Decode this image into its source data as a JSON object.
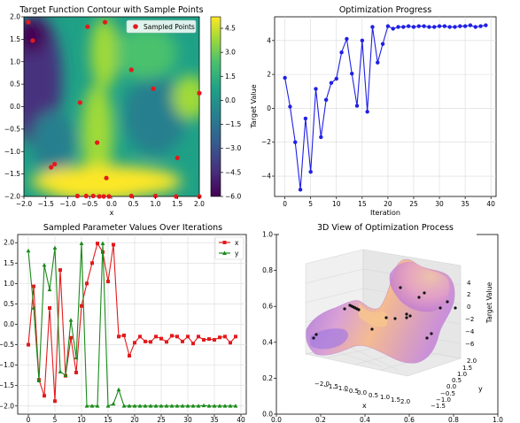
{
  "chart_data": [
    {
      "type": "contour",
      "title": "Target Function Contour with Sample Points",
      "xlabel": "x",
      "ylabel": "",
      "xlim": [
        -2.0,
        2.0
      ],
      "ylim": [
        -2.0,
        2.0
      ],
      "xticks": [
        "−2.0",
        "−1.5",
        "−1.0",
        "−0.5",
        "0.0",
        "0.5",
        "1.0",
        "1.5",
        "2.0"
      ],
      "yticks": [
        "−2.0",
        "−1.5",
        "−1.0",
        "−0.5",
        "0.0",
        "0.5",
        "1.0",
        "1.5",
        "2.0"
      ],
      "colorbar": {
        "ticks": [
          "4.5",
          "3.0",
          "1.5",
          "0.0",
          "−1.5",
          "−3.0",
          "−4.5",
          "−6.0"
        ],
        "colormap": [
          "#440154",
          "#46327e",
          "#365c8d",
          "#277f8e",
          "#1fa187",
          "#4ac16d",
          "#a0da39",
          "#fde725"
        ]
      },
      "legend": {
        "label": "Sampled Points",
        "placement": "top-right"
      },
      "point_color": "#e31a1c",
      "points": [
        [
          -1.9,
          1.88
        ],
        [
          -1.8,
          1.47
        ],
        [
          -0.55,
          1.78
        ],
        [
          -0.15,
          1.88
        ],
        [
          0.45,
          0.82
        ],
        [
          0.95,
          0.4
        ],
        [
          2.0,
          0.3
        ],
        [
          -0.72,
          0.09
        ],
        [
          -0.33,
          -0.8
        ],
        [
          1.5,
          -1.14
        ],
        [
          -1.3,
          -1.28
        ],
        [
          -1.38,
          -1.35
        ],
        [
          -0.12,
          -1.59
        ],
        [
          -0.78,
          -1.99
        ],
        [
          -0.58,
          -1.99
        ],
        [
          -0.42,
          -1.99
        ],
        [
          -0.28,
          -2.0
        ],
        [
          -0.18,
          -2.0
        ],
        [
          -0.06,
          -2.0
        ],
        [
          0.45,
          -1.99
        ],
        [
          1.0,
          -1.99
        ],
        [
          1.47,
          -2.0
        ],
        [
          2.0,
          -2.0
        ]
      ]
    },
    {
      "type": "line",
      "title": "Optimization Progress",
      "xlabel": "Iteration",
      "ylabel": "Target Value",
      "xlim": [
        -2,
        41
      ],
      "ylim": [
        -5.2,
        5.4
      ],
      "xticks": [
        "0",
        "5",
        "10",
        "15",
        "20",
        "25",
        "30",
        "35",
        "40"
      ],
      "yticks": [
        "−4",
        "−2",
        "0",
        "2",
        "4"
      ],
      "grid": true,
      "color": "#1f1fe6",
      "series": [
        {
          "x": [
            0,
            1,
            2,
            3,
            4,
            5,
            6,
            7,
            8,
            9,
            10,
            11,
            12,
            13,
            14,
            15,
            16,
            17,
            18,
            19,
            20,
            21,
            22,
            23,
            24,
            25,
            26,
            27,
            28,
            29,
            30,
            31,
            32,
            33,
            34,
            35,
            36,
            37,
            38,
            39
          ],
          "values": [
            1.8,
            0.1,
            -2.0,
            -4.8,
            -0.6,
            -3.75,
            1.15,
            -1.7,
            0.5,
            1.5,
            1.75,
            3.3,
            4.1,
            2.05,
            0.15,
            4.0,
            -0.2,
            4.8,
            2.7,
            3.8,
            4.85,
            4.7,
            4.8,
            4.8,
            4.85,
            4.8,
            4.85,
            4.85,
            4.8,
            4.8,
            4.85,
            4.85,
            4.8,
            4.8,
            4.85,
            4.85,
            4.9,
            4.8,
            4.85,
            4.9
          ]
        }
      ]
    },
    {
      "type": "line",
      "title": "Sampled Parameter Values Over Iterations",
      "xlabel": "",
      "ylabel": "",
      "xlim": [
        -2,
        41
      ],
      "ylim": [
        -2.2,
        2.2
      ],
      "xticks": [
        "0",
        "5",
        "10",
        "15",
        "20",
        "25",
        "30",
        "35",
        "40"
      ],
      "yticks": [
        "−2.0",
        "−1.5",
        "−1.0",
        "−0.5",
        "0.0",
        "0.5",
        "1.0",
        "1.5",
        "2.0"
      ],
      "grid": true,
      "legend_placement": "top-right",
      "x": [
        0,
        1,
        2,
        3,
        4,
        5,
        6,
        7,
        8,
        9,
        10,
        11,
        12,
        13,
        14,
        15,
        16,
        17,
        18,
        19,
        20,
        21,
        22,
        23,
        24,
        25,
        26,
        27,
        28,
        29,
        30,
        31,
        32,
        33,
        34,
        35,
        36,
        37,
        38,
        39
      ],
      "series": [
        {
          "name": "x",
          "color": "#e31a1c",
          "marker": "square",
          "values": [
            -0.5,
            0.93,
            -1.36,
            -1.75,
            0.4,
            -1.88,
            1.33,
            -1.26,
            -0.33,
            -1.18,
            0.45,
            1.0,
            1.5,
            1.98,
            1.77,
            1.05,
            1.95,
            -0.3,
            -0.27,
            -0.77,
            -0.45,
            -0.3,
            -0.42,
            -0.43,
            -0.3,
            -0.35,
            -0.43,
            -0.28,
            -0.3,
            -0.42,
            -0.3,
            -0.47,
            -0.3,
            -0.38,
            -0.36,
            -0.38,
            -0.32,
            -0.3,
            -0.45,
            -0.3
          ]
        },
        {
          "name": "y",
          "color": "#1a8a1a",
          "marker": "triangle",
          "values": [
            1.8,
            0.4,
            -1.38,
            1.45,
            0.85,
            1.87,
            -1.16,
            -1.25,
            0.1,
            -0.82,
            1.98,
            -2.0,
            -2.0,
            -2.0,
            1.98,
            -2.0,
            -1.95,
            -1.6,
            -2.0,
            -2.0,
            -2.0,
            -2.0,
            -2.0,
            -2.0,
            -2.0,
            -2.0,
            -2.0,
            -2.0,
            -2.0,
            -2.0,
            -2.0,
            -2.0,
            -2.0,
            -1.99,
            -2.0,
            -2.0,
            -2.0,
            -2.0,
            -2.0,
            -2.0
          ]
        }
      ]
    },
    {
      "type": "surface3d",
      "title": "3D View of Optimization Process",
      "xlabel": "x",
      "ylabel": "y",
      "zlabel": "Target Value",
      "xticks": [
        "−2.0",
        "−1.5",
        "−1.0",
        "−0.5",
        "0.0",
        "0.5",
        "1.0",
        "1.5",
        "2.0"
      ],
      "yticks": [
        "−2.0",
        "−1.5",
        "−1.0",
        "−0.5",
        "0.0",
        "0.5",
        "1.0",
        "1.5",
        "2.0"
      ],
      "zticks": [
        "−6",
        "−4",
        "−2",
        "0",
        "2",
        "4"
      ],
      "outer_axes": {
        "xticks": [
          "0.0",
          "0.2",
          "0.4",
          "0.6",
          "0.8",
          "1.0"
        ],
        "yticks": [
          "0.0",
          "0.2",
          "0.4",
          "0.6",
          "0.8",
          "1.0"
        ]
      },
      "colormap": [
        "#0d0887",
        "#6a00a8",
        "#b12a90",
        "#e16462",
        "#fca636",
        "#f0f921"
      ]
    }
  ]
}
